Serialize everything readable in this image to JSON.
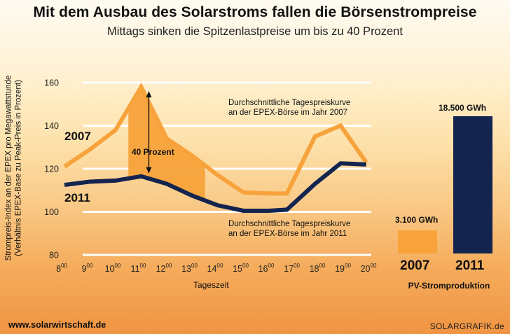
{
  "header": {
    "title": "Mit dem Ausbau des Solarstroms fallen die Börsenstrompreise",
    "subtitle": "Mittags sinken die Spitzenlastpreise um bis zu 40 Prozent"
  },
  "chart_data": [
    {
      "type": "line",
      "title": "Mit dem Ausbau des Solarstroms fallen die Börsenstrompreise",
      "subtitle": "Mittags sinken die Spitzenlastpreise um bis zu 40 Prozent",
      "ylabel_line1": "Strompreis-Index an der EPEX pro Megawattstunde",
      "ylabel_line2": "(Verhältnis EPEX-Base zu Peak-Preis in Prozent)",
      "xlabel": "Tageszeit",
      "ylim": [
        80,
        160
      ],
      "y_ticks": [
        "80",
        "100",
        "120",
        "140",
        "160"
      ],
      "x_hours": [
        "8",
        "9",
        "10",
        "11",
        "12",
        "13",
        "14",
        "15",
        "16",
        "17",
        "18",
        "19",
        "20"
      ],
      "x_superscript": "00",
      "series": [
        {
          "name": "2007",
          "color": "#f7a23a",
          "x": [
            8,
            9,
            10,
            11,
            12,
            13,
            14,
            15,
            16,
            16.7,
            17.8,
            18.8,
            19.8
          ],
          "values": [
            121,
            129,
            138,
            158,
            134,
            126,
            117,
            109,
            108.5,
            108.5,
            135,
            140,
            123
          ],
          "description": "Durchschnittliche Tagespreiskurve an der EPEX-Börse im Jahr 2007"
        },
        {
          "name": "2011",
          "color": "#13244f",
          "x": [
            8,
            9,
            10,
            11,
            12,
            13,
            14,
            15,
            16,
            16.7,
            17.8,
            18.8,
            19.8
          ],
          "values": [
            112.5,
            114,
            114.5,
            116.5,
            113,
            107.5,
            103,
            100.5,
            100.5,
            101,
            113,
            122.5,
            122
          ],
          "description": "Durchschnittliche Tagespreiskurve an der EPEX-Börse im Jahr 2011"
        }
      ],
      "highlight": {
        "label": "40 Prozent",
        "from_x": 10.5,
        "to_x": 13.5,
        "arrow_x": 11.3,
        "arrow_from": 158,
        "arrow_to": 116.5
      },
      "annotations": {
        "upper_line1": "Durchschnittliche Tagespreiskurve",
        "upper_line2": "an der EPEX-Börse im Jahr 2007",
        "lower_line1": "Durchschnittliche Tagespreiskurve",
        "lower_line2": "an der EPEX-Börse im Jahr 2011",
        "label_2007": "2007",
        "label_2011": "2011"
      }
    },
    {
      "type": "bar",
      "title": "PV-Stromproduktion",
      "categories": [
        "2007",
        "2011"
      ],
      "values": [
        3100,
        18500
      ],
      "value_labels": [
        "3.100 GWh",
        "18.500 GWh"
      ],
      "colors": [
        "#f7a23a",
        "#13244f"
      ],
      "ylim": [
        0,
        18500
      ]
    }
  ],
  "colors": {
    "orange": "#f7a23a",
    "navy": "#13244f",
    "grid": "#ffffff"
  },
  "footer": {
    "website": "www.solarwirtschaft.de",
    "credit": "SOLARGRAFIK.de"
  }
}
